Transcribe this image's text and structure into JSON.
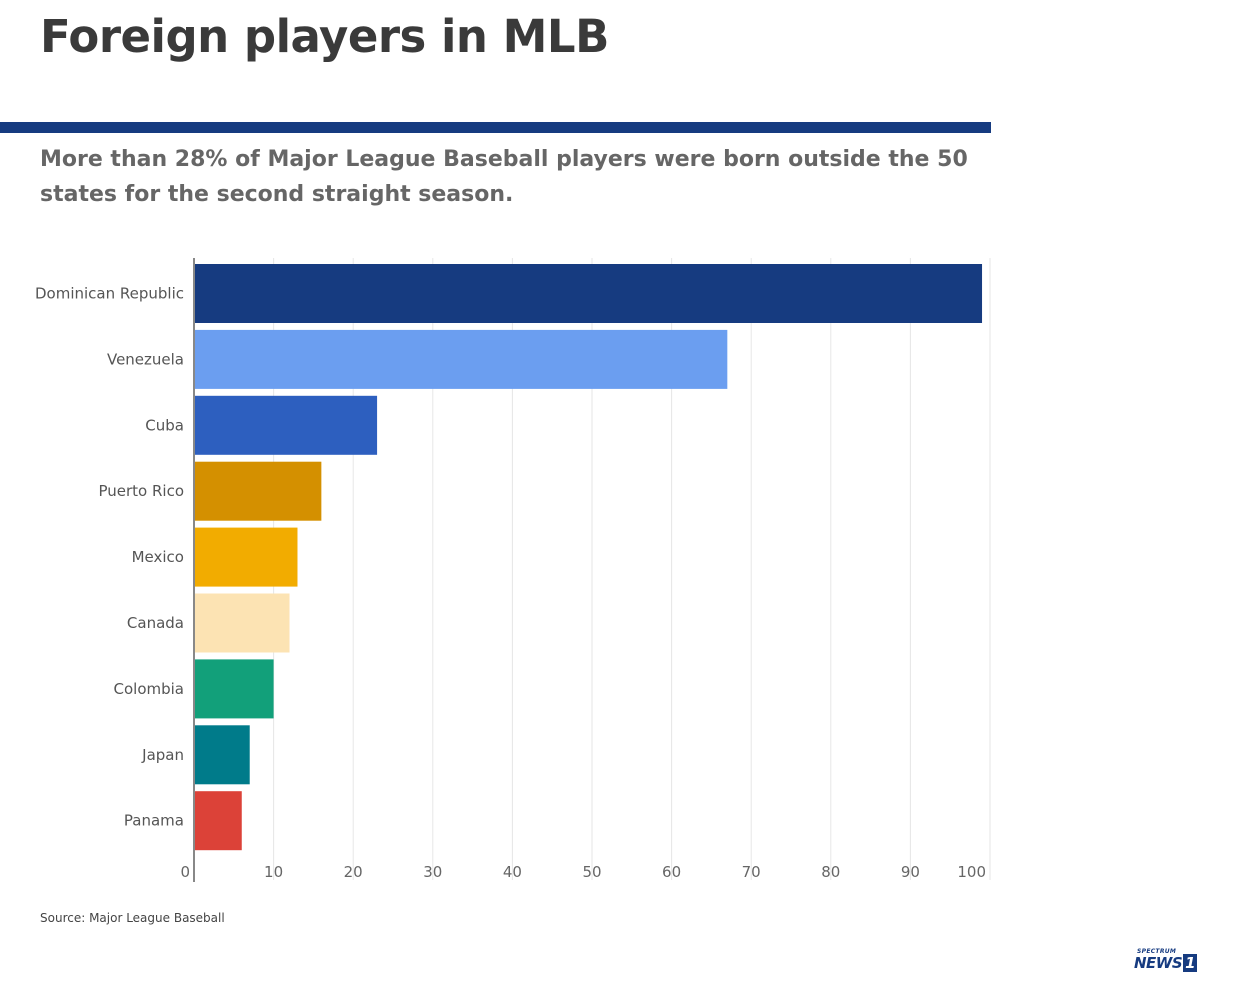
{
  "header": {
    "title": "Foreign players in MLB",
    "subtitle": "More than 28% of Major League Baseball players were born outside the 50 states for the second straight season."
  },
  "footer": {
    "source": "Source: Major League Baseball",
    "logo_small": "SPECTRUM",
    "logo_news": "NEWS",
    "logo_num": "1"
  },
  "colors": {
    "accent_rule": "#163b80",
    "axis": "#888888",
    "grid": "#e6e6e6"
  },
  "chart_data": {
    "type": "bar",
    "orientation": "horizontal",
    "categories": [
      "Dominican Republic",
      "Venezuela",
      "Cuba",
      "Puerto Rico",
      "Mexico",
      "Canada",
      "Colombia",
      "Japan",
      "Panama"
    ],
    "values": [
      99,
      67,
      23,
      16,
      13,
      12,
      10,
      7,
      6
    ],
    "bar_colors": [
      "#163b80",
      "#6b9ef0",
      "#2d5fbf",
      "#d49000",
      "#f2ac00",
      "#fce3b3",
      "#12a07a",
      "#007b8a",
      "#dc4238"
    ],
    "xlim": [
      0,
      100
    ],
    "xticks": [
      0,
      10,
      20,
      30,
      40,
      50,
      60,
      70,
      80,
      90,
      100
    ],
    "grid": true,
    "legend": "none"
  }
}
